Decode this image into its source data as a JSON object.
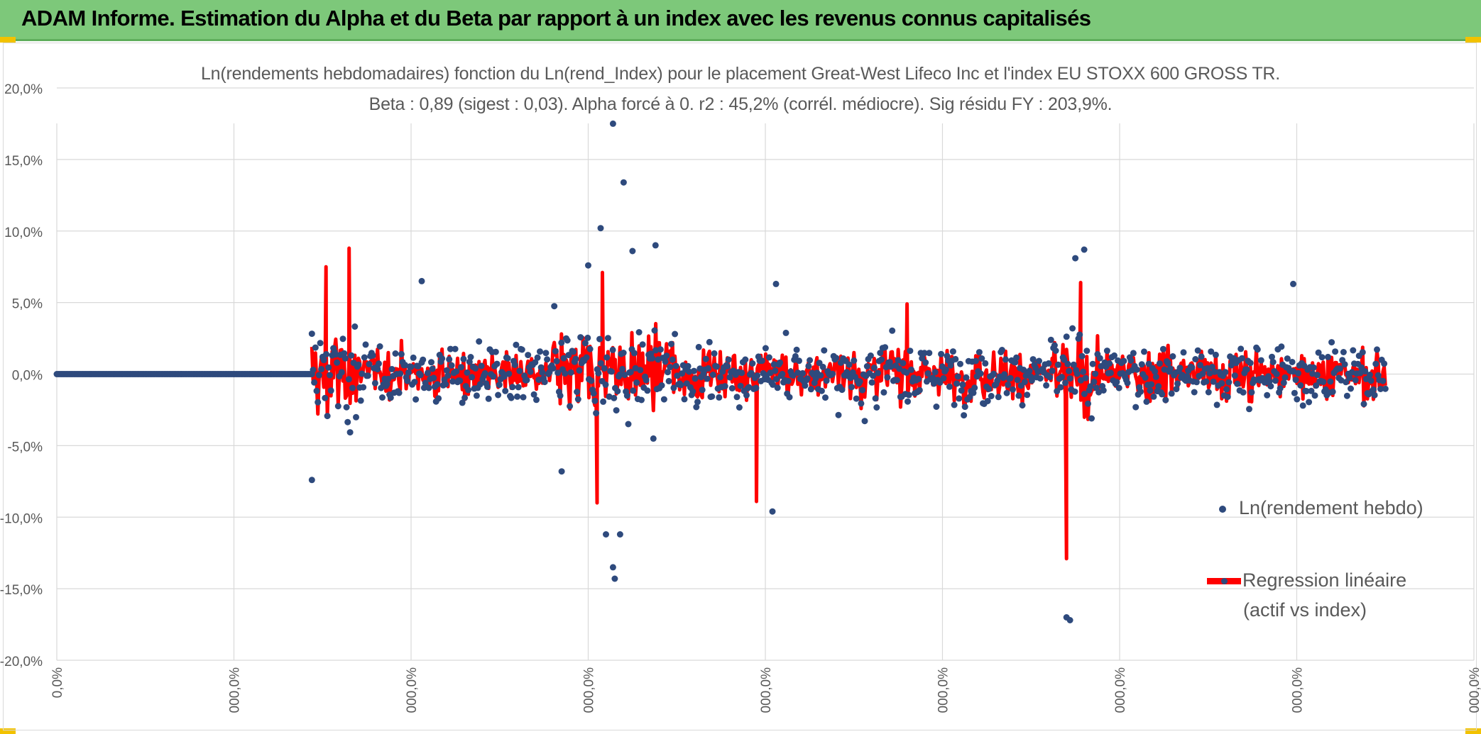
{
  "header": {
    "title": "ADAM Informe. Estimation du Alpha et du Beta par rapport à un index avec les revenus connus capitalisés"
  },
  "chart_data": {
    "type": "scatter",
    "title": "Ln(rendements hebdomadaires) fonction du Ln(rend_Index) pour le placement Great-West Lifeco Inc et l'index EU STOXX 600 GROSS TR.",
    "subtitle": "Beta : 0,89 (sigest : 0,03). Alpha forcé à 0. r2 : 45,2% (corrél. médiocre). Sig résidu FY : 203,9%.",
    "xlabel": "",
    "ylabel": "",
    "ylim": [
      -20,
      20
    ],
    "xlim": [
      0,
      8
    ],
    "y_ticks": [
      "20,0%",
      "15,0%",
      "10,0%",
      "5,0%",
      "0,0%",
      "-5,0%",
      "-10,0%",
      "-15,0%",
      "-20,0%"
    ],
    "x_ticks": [
      "0,0%",
      "000,0%",
      "000,0%",
      "000,0%",
      "000,0%",
      "000,0%",
      "000,0%",
      "000,0%",
      "000,0%"
    ],
    "grid": true,
    "legend_position": "right",
    "series": [
      {
        "name": "Ln(rendement hebdo)",
        "kind": "markers",
        "color": "#2e4a7d",
        "highlight_points": [
          {
            "x": 3.14,
            "y": 17.5
          },
          {
            "x": 3.2,
            "y": 13.4
          },
          {
            "x": 3.07,
            "y": 10.2
          },
          {
            "x": 3.38,
            "y": 9.0
          },
          {
            "x": 3.25,
            "y": 8.6
          },
          {
            "x": 3.0,
            "y": 7.6
          },
          {
            "x": 2.06,
            "y": 6.5
          },
          {
            "x": 4.06,
            "y": 6.3
          },
          {
            "x": 5.8,
            "y": 8.7
          },
          {
            "x": 5.75,
            "y": 8.1
          },
          {
            "x": 6.98,
            "y": 6.3
          },
          {
            "x": 1.44,
            "y": -7.4
          },
          {
            "x": 3.1,
            "y": -11.2
          },
          {
            "x": 3.14,
            "y": -13.5
          },
          {
            "x": 3.15,
            "y": -14.3
          },
          {
            "x": 3.18,
            "y": -11.2
          },
          {
            "x": 4.04,
            "y": -9.6
          },
          {
            "x": 5.7,
            "y": -17.0
          },
          {
            "x": 5.72,
            "y": -17.2
          },
          {
            "x": 2.85,
            "y": -6.8
          }
        ]
      },
      {
        "name": "Regression linéaire (actif vs index)",
        "kind": "line",
        "color": "#ff0000",
        "highlight_points": [
          {
            "x": 1.65,
            "y": 8.8
          },
          {
            "x": 1.52,
            "y": 7.5
          },
          {
            "x": 3.08,
            "y": 7.1
          },
          {
            "x": 3.05,
            "y": -9.0
          },
          {
            "x": 3.95,
            "y": -8.9
          },
          {
            "x": 5.7,
            "y": -12.9
          },
          {
            "x": 5.78,
            "y": 6.4
          },
          {
            "x": 4.8,
            "y": 4.9
          }
        ]
      }
    ],
    "notes": "Points at 0,0% across the first ~1.44 x-units; dense cloud of weekly returns between x≈1.44 and x≈7.5."
  },
  "legend": {
    "scatter_label": "Ln(rendement hebdo)",
    "line_label_1": "Regression linéaire",
    "line_label_2": "(actif vs index)"
  }
}
